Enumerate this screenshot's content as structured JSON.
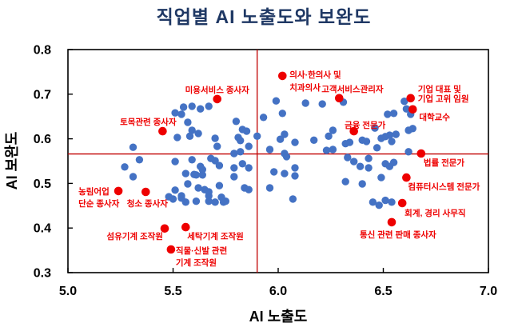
{
  "chart_data": {
    "type": "scatter",
    "title": "직업별 AI 노출도와 보완도",
    "xlabel": "AI 노출도",
    "ylabel": "AI 보완도",
    "xlim": [
      5.0,
      7.0
    ],
    "ylim": [
      0.3,
      0.8
    ],
    "xticks": [
      5.0,
      5.5,
      6.0,
      6.5,
      7.0
    ],
    "yticks": [
      0.3,
      0.4,
      0.5,
      0.6,
      0.7,
      0.8
    ],
    "grid": false,
    "legend": "none",
    "reference_lines": {
      "x": 5.9,
      "y": 0.566
    },
    "colors": {
      "title": "#1f3864",
      "axis": "#000000",
      "blue_point": "#4472c4",
      "red_point": "#ee0000",
      "red_label": "#ee0000",
      "refline": "#c00000",
      "background": "#ffffff"
    },
    "series": [
      {
        "name": "occupations-unlabeled",
        "color": "#4472c4",
        "points": [
          [
            5.51,
            0.658
          ],
          [
            5.55,
            0.671
          ],
          [
            5.59,
            0.673
          ],
          [
            5.63,
            0.667
          ],
          [
            5.67,
            0.673
          ],
          [
            5.54,
            0.655
          ],
          [
            5.57,
            0.637
          ],
          [
            5.59,
            0.619
          ],
          [
            5.52,
            0.603
          ],
          [
            5.58,
            0.606
          ],
          [
            5.62,
            0.612
          ],
          [
            5.31,
            0.581
          ],
          [
            5.34,
            0.553
          ],
          [
            5.27,
            0.537
          ],
          [
            5.31,
            0.515
          ],
          [
            5.48,
            0.47
          ],
          [
            5.5,
            0.465
          ],
          [
            5.54,
            0.472
          ],
          [
            5.56,
            0.458
          ],
          [
            5.51,
            0.549
          ],
          [
            5.56,
            0.522
          ],
          [
            5.57,
            0.499
          ],
          [
            5.61,
            0.519
          ],
          [
            5.51,
            0.485
          ],
          [
            5.54,
            0.467
          ],
          [
            5.99,
            0.685
          ],
          [
            6.13,
            0.68
          ],
          [
            6.21,
            0.678
          ],
          [
            6.02,
            0.657
          ],
          [
            5.8,
            0.639
          ],
          [
            5.93,
            0.648
          ],
          [
            5.83,
            0.621
          ],
          [
            5.85,
            0.617
          ],
          [
            5.81,
            0.603
          ],
          [
            5.82,
            0.596
          ],
          [
            5.9,
            0.606
          ],
          [
            6.03,
            0.61
          ],
          [
            6.01,
            0.599
          ],
          [
            6.08,
            0.592
          ],
          [
            6.17,
            0.597
          ],
          [
            6.24,
            0.606
          ],
          [
            6.26,
            0.619
          ],
          [
            5.7,
            0.601
          ],
          [
            5.71,
            0.583
          ],
          [
            5.86,
            0.583
          ],
          [
            5.96,
            0.576
          ],
          [
            5.79,
            0.567
          ],
          [
            5.82,
            0.571
          ],
          [
            6.03,
            0.567
          ],
          [
            6.04,
            0.56
          ],
          [
            6.23,
            0.574
          ],
          [
            6.26,
            0.576
          ],
          [
            5.59,
            0.553
          ],
          [
            5.68,
            0.556
          ],
          [
            5.7,
            0.551
          ],
          [
            5.72,
            0.54
          ],
          [
            5.63,
            0.538
          ],
          [
            5.64,
            0.531
          ],
          [
            5.6,
            0.52
          ],
          [
            5.64,
            0.519
          ],
          [
            5.79,
            0.535
          ],
          [
            5.83,
            0.544
          ],
          [
            5.86,
            0.535
          ],
          [
            5.79,
            0.515
          ],
          [
            5.98,
            0.526
          ],
          [
            6.03,
            0.522
          ],
          [
            6.08,
            0.535
          ],
          [
            6.08,
            0.517
          ],
          [
            5.62,
            0.49
          ],
          [
            5.65,
            0.486
          ],
          [
            5.67,
            0.481
          ],
          [
            5.67,
            0.472
          ],
          [
            5.72,
            0.495
          ],
          [
            5.84,
            0.49
          ],
          [
            5.86,
            0.486
          ],
          [
            5.96,
            0.49
          ],
          [
            5.73,
            0.469
          ],
          [
            5.75,
            0.46
          ],
          [
            5.67,
            0.46
          ],
          [
            5.61,
            0.46
          ],
          [
            5.7,
            0.458
          ],
          [
            5.74,
            0.458
          ],
          [
            6.07,
            0.465
          ],
          [
            6.31,
            0.682
          ],
          [
            6.52,
            0.655
          ],
          [
            6.55,
            0.657
          ],
          [
            6.6,
            0.684
          ],
          [
            6.61,
            0.667
          ],
          [
            6.63,
            0.655
          ],
          [
            6.46,
            0.624
          ],
          [
            6.32,
            0.589
          ],
          [
            6.34,
            0.592
          ],
          [
            6.4,
            0.597
          ],
          [
            6.42,
            0.594
          ],
          [
            6.49,
            0.601
          ],
          [
            6.51,
            0.605
          ],
          [
            6.53,
            0.608
          ],
          [
            6.54,
            0.594
          ],
          [
            6.56,
            0.61
          ],
          [
            6.62,
            0.619
          ],
          [
            6.64,
            0.623
          ],
          [
            6.47,
            0.58
          ],
          [
            6.62,
            0.571
          ],
          [
            6.33,
            0.558
          ],
          [
            6.36,
            0.549
          ],
          [
            6.43,
            0.556
          ],
          [
            6.39,
            0.538
          ],
          [
            6.43,
            0.535
          ],
          [
            6.51,
            0.544
          ],
          [
            6.53,
            0.538
          ],
          [
            6.55,
            0.547
          ],
          [
            6.32,
            0.504
          ],
          [
            6.4,
            0.499
          ],
          [
            6.49,
            0.513
          ],
          [
            6.45,
            0.458
          ],
          [
            6.48,
            0.451
          ],
          [
            6.51,
            0.462
          ],
          [
            6.54,
            0.458
          ]
        ]
      },
      {
        "name": "occupations-highlighted",
        "color": "#ee0000",
        "points": [
          {
            "lines": [
              "미용서비스 종사자"
            ],
            "x": 5.71,
            "y": 0.689,
            "anchor": "middle",
            "dx": 0,
            "dy": -8,
            "lh": 15
          },
          {
            "lines": [
              "토목관련 종사자"
            ],
            "x": 5.45,
            "y": 0.617,
            "anchor": "middle",
            "dx": -18,
            "dy": -8,
            "lh": 15
          },
          {
            "lines": [
              "의사·한의사 및",
              "치과의사"
            ],
            "x": 6.02,
            "y": 0.741,
            "anchor": "start",
            "dx": 9,
            "dy": 2,
            "lh": 16
          },
          {
            "lines": [
              "고객서비스관리자"
            ],
            "x": 6.29,
            "y": 0.691,
            "anchor": "start",
            "dx": -22,
            "dy": -8,
            "lh": 15
          },
          {
            "lines": [
              "기업 대표 및",
              "기업 고위 임원"
            ],
            "x": 6.63,
            "y": 0.691,
            "anchor": "start",
            "dx": 9,
            "dy": -8,
            "lh": 12
          },
          {
            "lines": [
              "대학교수"
            ],
            "x": 6.64,
            "y": 0.666,
            "anchor": "start",
            "dx": 8,
            "dy": 13,
            "lh": 15
          },
          {
            "lines": [
              "금융 전문가"
            ],
            "x": 6.36,
            "y": 0.617,
            "anchor": "middle",
            "dx": 14,
            "dy": -4,
            "lh": 15
          },
          {
            "lines": [
              "법률 전문가"
            ],
            "x": 6.68,
            "y": 0.567,
            "anchor": "start",
            "dx": 3,
            "dy": 15,
            "lh": 15
          },
          {
            "lines": [
              "컴퓨터시스템 전문가"
            ],
            "x": 6.61,
            "y": 0.513,
            "anchor": "start",
            "dx": 2,
            "dy": 15,
            "lh": 15
          },
          {
            "lines": [
              "회계, 경리 사무직"
            ],
            "x": 6.59,
            "y": 0.456,
            "anchor": "start",
            "dx": 3,
            "dy": 16,
            "lh": 15
          },
          {
            "lines": [
              "통신 관련 판매 종사자"
            ],
            "x": 6.54,
            "y": 0.413,
            "anchor": "start",
            "dx": -40,
            "dy": 19,
            "lh": 15
          },
          {
            "lines": [
              "농림어업",
              "단순 종사자"
            ],
            "x": 5.24,
            "y": 0.483,
            "anchor": "start",
            "dx": -50,
            "dy": 4,
            "lh": 15
          },
          {
            "lines": [
              "청소 종사자"
            ],
            "x": 5.37,
            "y": 0.481,
            "anchor": "middle",
            "dx": 2,
            "dy": 18,
            "lh": 15
          },
          {
            "lines": [
              "섬유기계 조작원"
            ],
            "x": 5.46,
            "y": 0.399,
            "anchor": "end",
            "dx": -2,
            "dy": 13,
            "lh": 15
          },
          {
            "lines": [
              "세탁기계 조작원"
            ],
            "x": 5.56,
            "y": 0.402,
            "anchor": "start",
            "dx": 2,
            "dy": 15,
            "lh": 15
          },
          {
            "lines": [
              "직물·신발 관련",
              "기계 조작원"
            ],
            "x": 5.49,
            "y": 0.352,
            "anchor": "start",
            "dx": 6,
            "dy": 5,
            "lh": 15
          }
        ]
      }
    ]
  }
}
